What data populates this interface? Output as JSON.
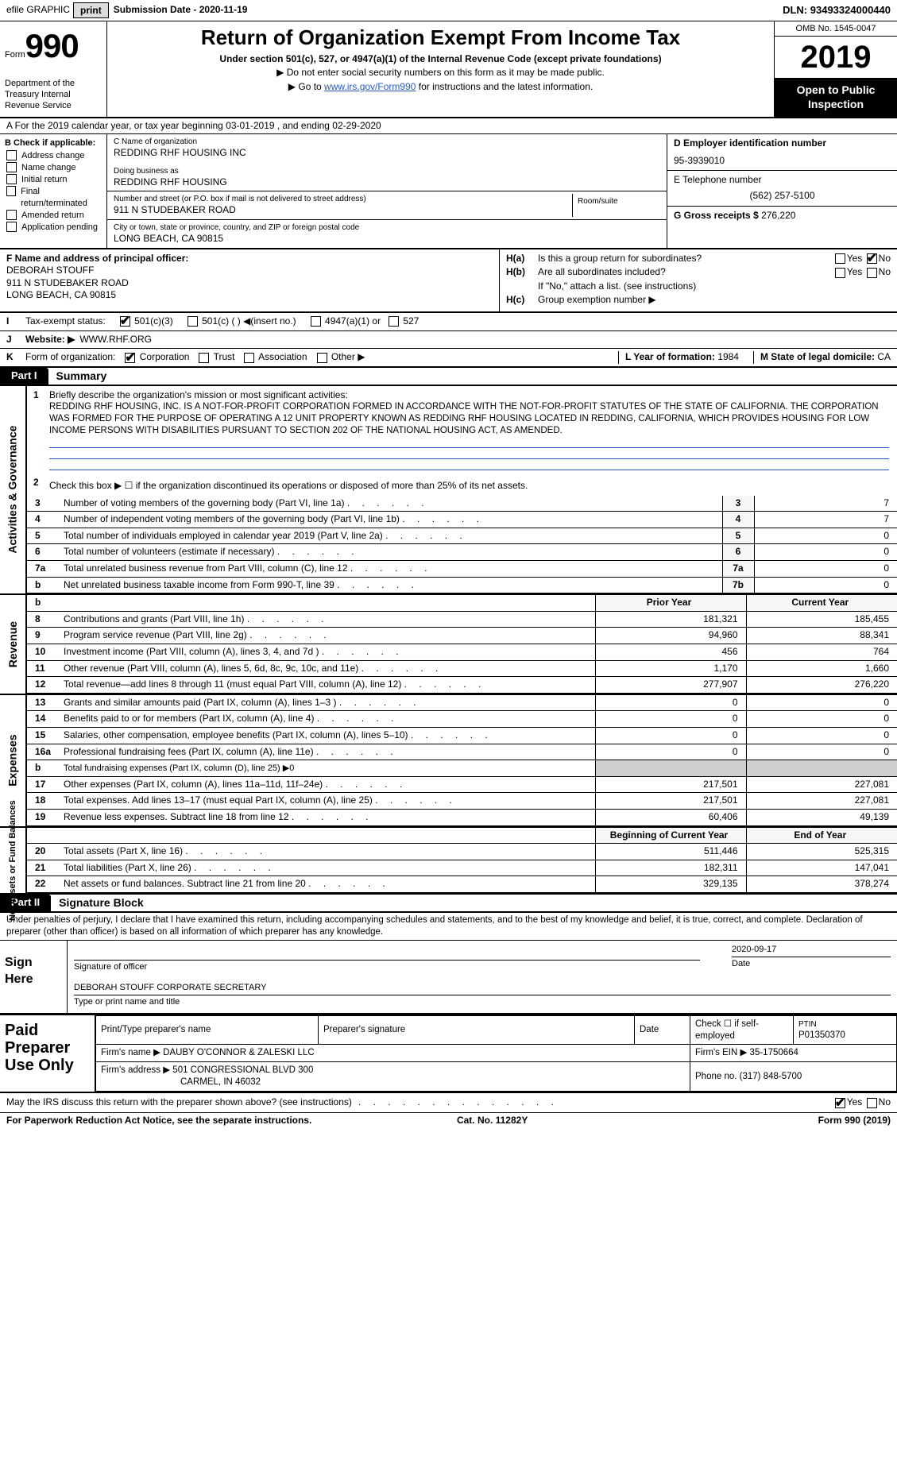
{
  "topbar": {
    "efile_label": "efile GRAPHIC",
    "print_btn": "print",
    "sub_date_label": "Submission Date - ",
    "sub_date": "2020-11-19",
    "dln_label": "DLN: ",
    "dln": "93493324000440"
  },
  "header": {
    "form_word": "Form",
    "form_number": "990",
    "dept": "Department of the Treasury Internal Revenue Service",
    "title": "Return of Organization Exempt From Income Tax",
    "subtitle": "Under section 501(c), 527, or 4947(a)(1) of the Internal Revenue Code (except private foundations)",
    "note1": "▶ Do not enter social security numbers on this form as it may be made public.",
    "note2_pre": "▶ Go to ",
    "note2_link": "www.irs.gov/Form990",
    "note2_post": " for instructions and the latest information.",
    "omb": "OMB No. 1545-0047",
    "tax_year": "2019",
    "open_public": "Open to Public Inspection"
  },
  "row_a": "A For the 2019 calendar year, or tax year beginning 03-01-2019    , and ending 02-29-2020",
  "b_checks": {
    "title": "B Check if applicable:",
    "addr": "Address change",
    "name": "Name change",
    "initial": "Initial return",
    "final": "Final return/terminated",
    "amended": "Amended return",
    "app": "Application pending"
  },
  "c_block": {
    "c_label": "C Name of organization",
    "org_name": "REDDING RHF HOUSING INC",
    "dba_label": "Doing business as",
    "dba": "REDDING RHF HOUSING",
    "street_label": "Number and street (or P.O. box if mail is not delivered to street address)",
    "street": "911 N STUDEBAKER ROAD",
    "room_label": "Room/suite",
    "city_label": "City or town, state or province, country, and ZIP or foreign postal code",
    "city": "LONG BEACH, CA  90815"
  },
  "right": {
    "d_label": "D Employer identification number",
    "d_val": "95-3939010",
    "e_label": "E Telephone number",
    "e_val": "(562) 257-5100",
    "g_label": "G Gross receipts $ ",
    "g_val": "276,220"
  },
  "f_block": {
    "f_label": "F Name and address of principal officer:",
    "name": "DEBORAH STOUFF",
    "addr1": "911 N STUDEBAKER ROAD",
    "addr2": "LONG BEACH, CA  90815"
  },
  "h_block": {
    "ha_label": "H(a)",
    "ha_txt": "Is this a group return for subordinates?",
    "hb_label": "H(b)",
    "hb_txt": "Are all subordinates included?",
    "hb_note": "If \"No,\" attach a list. (see instructions)",
    "hc_label": "H(c)",
    "hc_txt": "Group exemption number ▶",
    "yes": "Yes",
    "no": "No"
  },
  "row_i": {
    "label": "I",
    "txt": "Tax-exempt status:",
    "c1": "501(c)(3)",
    "c2": "501(c) (  ) ◀(insert no.)",
    "c3": "4947(a)(1) or",
    "c4": "527"
  },
  "row_j": {
    "label": "J",
    "txt": "Website: ▶",
    "val": "WWW.RHF.ORG"
  },
  "row_k": {
    "label": "K",
    "txt": "Form of organization:",
    "c1": "Corporation",
    "c2": "Trust",
    "c3": "Association",
    "c4": "Other ▶",
    "l_label": "L Year of formation: ",
    "l_val": "1984",
    "m_label": "M State of legal domicile: ",
    "m_val": "CA"
  },
  "part1": {
    "tab": "Part I",
    "title": "Summary",
    "side_act": "Activities & Governance",
    "side_rev": "Revenue",
    "side_exp": "Expenses",
    "side_net": "Net Assets or Fund Balances",
    "line1_label": "1",
    "line1_lead": "Briefly describe the organization's mission or most significant activities:",
    "mission": "REDDING RHF HOUSING, INC. IS A NOT-FOR-PROFIT CORPORATION FORMED IN ACCORDANCE WITH THE NOT-FOR-PROFIT STATUTES OF THE STATE OF CALIFORNIA. THE CORPORATION WAS FORMED FOR THE PURPOSE OF OPERATING A 12 UNIT PROPERTY KNOWN AS REDDING RHF HOUSING LOCATED IN REDDING, CALIFORNIA, WHICH PROVIDES HOUSING FOR LOW INCOME PERSONS WITH DISABILITIES PURSUANT TO SECTION 202 OF THE NATIONAL HOUSING ACT, AS AMENDED.",
    "line2": "Check this box ▶ ☐ if the organization discontinued its operations or disposed of more than 25% of its net assets.",
    "rows_act": [
      {
        "num": "3",
        "txt": "Number of voting members of the governing body (Part VI, line 1a)",
        "box": "3",
        "val": "7"
      },
      {
        "num": "4",
        "txt": "Number of independent voting members of the governing body (Part VI, line 1b)",
        "box": "4",
        "val": "7"
      },
      {
        "num": "5",
        "txt": "Total number of individuals employed in calendar year 2019 (Part V, line 2a)",
        "box": "5",
        "val": "0"
      },
      {
        "num": "6",
        "txt": "Total number of volunteers (estimate if necessary)",
        "box": "6",
        "val": "0"
      },
      {
        "num": "7a",
        "txt": "Total unrelated business revenue from Part VIII, column (C), line 12",
        "box": "7a",
        "val": "0"
      },
      {
        "num": "b",
        "txt": "Net unrelated business taxable income from Form 990-T, line 39",
        "box": "7b",
        "val": "0"
      }
    ],
    "hdr_prior": "Prior Year",
    "hdr_current": "Current Year",
    "rows_rev": [
      {
        "num": "8",
        "txt": "Contributions and grants (Part VIII, line 1h)",
        "p": "181,321",
        "c": "185,455"
      },
      {
        "num": "9",
        "txt": "Program service revenue (Part VIII, line 2g)",
        "p": "94,960",
        "c": "88,341"
      },
      {
        "num": "10",
        "txt": "Investment income (Part VIII, column (A), lines 3, 4, and 7d )",
        "p": "456",
        "c": "764"
      },
      {
        "num": "11",
        "txt": "Other revenue (Part VIII, column (A), lines 5, 6d, 8c, 9c, 10c, and 11e)",
        "p": "1,170",
        "c": "1,660"
      },
      {
        "num": "12",
        "txt": "Total revenue—add lines 8 through 11 (must equal Part VIII, column (A), line 12)",
        "p": "277,907",
        "c": "276,220"
      }
    ],
    "rows_exp": [
      {
        "num": "13",
        "txt": "Grants and similar amounts paid (Part IX, column (A), lines 1–3 )",
        "p": "0",
        "c": "0"
      },
      {
        "num": "14",
        "txt": "Benefits paid to or for members (Part IX, column (A), line 4)",
        "p": "0",
        "c": "0"
      },
      {
        "num": "15",
        "txt": "Salaries, other compensation, employee benefits (Part IX, column (A), lines 5–10)",
        "p": "0",
        "c": "0"
      },
      {
        "num": "16a",
        "txt": "Professional fundraising fees (Part IX, column (A), line 11e)",
        "p": "0",
        "c": "0"
      },
      {
        "num": "b",
        "txt": "Total fundraising expenses (Part IX, column (D), line 25) ▶0",
        "p": "",
        "c": "",
        "grey": true
      },
      {
        "num": "17",
        "txt": "Other expenses (Part IX, column (A), lines 11a–11d, 11f–24e)",
        "p": "217,501",
        "c": "227,081"
      },
      {
        "num": "18",
        "txt": "Total expenses. Add lines 13–17 (must equal Part IX, column (A), line 25)",
        "p": "217,501",
        "c": "227,081"
      },
      {
        "num": "19",
        "txt": "Revenue less expenses. Subtract line 18 from line 12",
        "p": "60,406",
        "c": "49,139"
      }
    ],
    "hdr_boy": "Beginning of Current Year",
    "hdr_eoy": "End of Year",
    "rows_net": [
      {
        "num": "20",
        "txt": "Total assets (Part X, line 16)",
        "p": "511,446",
        "c": "525,315"
      },
      {
        "num": "21",
        "txt": "Total liabilities (Part X, line 26)",
        "p": "182,311",
        "c": "147,041"
      },
      {
        "num": "22",
        "txt": "Net assets or fund balances. Subtract line 21 from line 20",
        "p": "329,135",
        "c": "378,274"
      }
    ]
  },
  "part2": {
    "tab": "Part II",
    "title": "Signature Block",
    "decl": "Under penalties of perjury, I declare that I have examined this return, including accompanying schedules and statements, and to the best of my knowledge and belief, it is true, correct, and complete. Declaration of preparer (other than officer) is based on all information of which preparer has any knowledge.",
    "sign_here": "Sign Here",
    "sig_officer": "Signature of officer",
    "sig_date": "Date",
    "sig_date_val": "2020-09-17",
    "sig_name": "DEBORAH STOUFF  CORPORATE SECRETARY",
    "sig_type": "Type or print name and title",
    "paid_prep": "Paid Preparer Use Only",
    "pt_name_label": "Print/Type preparer's name",
    "pt_sig_label": "Preparer's signature",
    "pt_date_label": "Date",
    "pt_check_label": "Check ☐ if self-employed",
    "ptin_label": "PTIN",
    "ptin": "P01350370",
    "firm_name_label": "Firm's name    ▶",
    "firm_name": "DAUBY O'CONNOR & ZALESKI LLC",
    "firm_ein_label": "Firm's EIN ▶",
    "firm_ein": "35-1750664",
    "firm_addr_label": "Firm's address ▶",
    "firm_addr1": "501 CONGRESSIONAL BLVD 300",
    "firm_addr2": "CARMEL, IN  46032",
    "phone_label": "Phone no. ",
    "phone": "(317) 848-5700"
  },
  "footer": {
    "discuss": "May the IRS discuss this return with the preparer shown above? (see instructions)",
    "yes": "Yes",
    "no": "No",
    "pra": "For Paperwork Reduction Act Notice, see the separate instructions.",
    "cat": "Cat. No. 11282Y",
    "form": "Form 990 (2019)"
  }
}
